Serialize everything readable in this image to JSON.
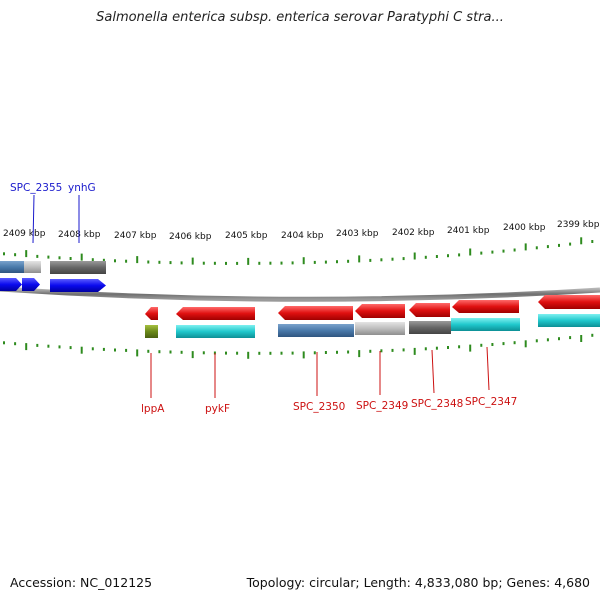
{
  "header": {
    "title": "Salmonella enterica subsp. enterica serovar Paratyphi C stra..."
  },
  "footer": {
    "accession": "Accession: NC_012125",
    "summary": "Topology: circular; Length: 4,833,080 bp; Genes: 4,680"
  },
  "ruler": {
    "labels": [
      "2409 kbp",
      "2408 kbp",
      "2407 kbp",
      "2406 kbp",
      "2405 kbp",
      "2404 kbp",
      "2403 kbp",
      "2402 kbp",
      "2401 kbp",
      "2400 kbp",
      "2399 kbp"
    ]
  },
  "genes_top": [
    {
      "name": "SPC_2355"
    },
    {
      "name": "ynhG"
    }
  ],
  "genes_bottom": [
    {
      "name": "lppA"
    },
    {
      "name": "pykF"
    },
    {
      "name": "SPC_2350"
    },
    {
      "name": "SPC_2349"
    },
    {
      "name": "SPC_2348"
    },
    {
      "name": "SPC_2347"
    }
  ],
  "colors": {
    "tick": "#2e8b1e",
    "backbone": "#7a7a7a",
    "forward_gene": "#1010ee",
    "reverse_gene": "#ee1111",
    "label_blue": "#1a1acc",
    "label_red": "#cc1111"
  }
}
